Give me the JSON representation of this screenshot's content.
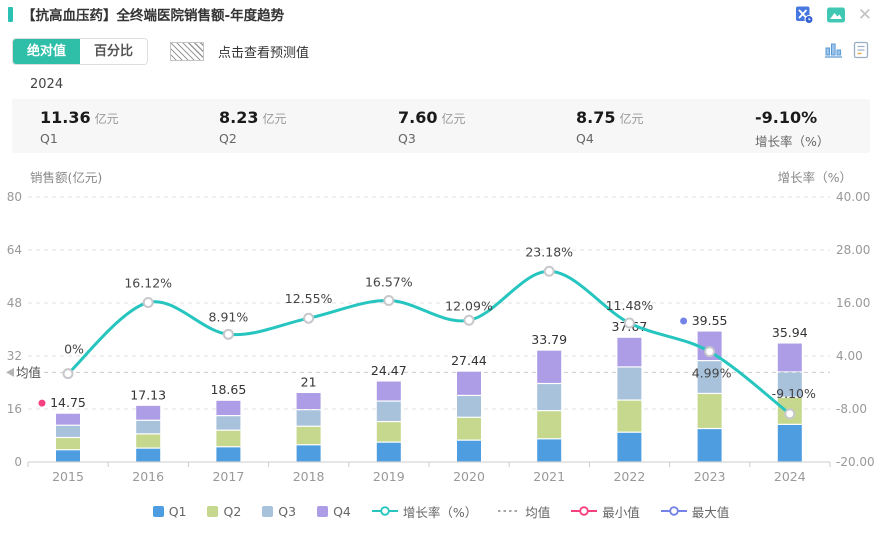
{
  "header": {
    "title": "【抗高血压药】全终端医院销售额-年度趋势"
  },
  "toolbar": {
    "segments": [
      {
        "label": "绝对值",
        "active": true
      },
      {
        "label": "百分比",
        "active": false
      }
    ],
    "forecast_label": "点击查看预测值"
  },
  "period_label": "2024",
  "stats": [
    {
      "value": "11.36",
      "unit": "亿元",
      "label": "Q1"
    },
    {
      "value": "8.23",
      "unit": "亿元",
      "label": "Q2"
    },
    {
      "value": "7.60",
      "unit": "亿元",
      "label": "Q3"
    },
    {
      "value": "8.75",
      "unit": "亿元",
      "label": "Q4"
    },
    {
      "value": "-9.10%",
      "unit": "",
      "label": "增长率（%）"
    }
  ],
  "chart_data": {
    "type": "bar",
    "subtype": "stacked-bar-with-line",
    "categories": [
      "2015",
      "2016",
      "2017",
      "2018",
      "2019",
      "2020",
      "2021",
      "2022",
      "2023",
      "2024"
    ],
    "series": [
      {
        "name": "Q1",
        "type": "bar",
        "color": "#4D9DE0",
        "values": [
          3.7,
          4.2,
          4.6,
          5.2,
          6.0,
          6.6,
          7.0,
          9.0,
          10.1,
          11.36
        ]
      },
      {
        "name": "Q2",
        "type": "bar",
        "color": "#C5D88D",
        "values": [
          3.7,
          4.3,
          5.0,
          5.6,
          6.2,
          6.9,
          8.5,
          9.7,
          10.6,
          8.23
        ]
      },
      {
        "name": "Q3",
        "type": "bar",
        "color": "#A9C2DC",
        "values": [
          3.7,
          4.1,
          4.4,
          5.0,
          6.2,
          6.6,
          8.2,
          10.0,
          9.9,
          7.6
        ]
      },
      {
        "name": "Q4",
        "type": "bar",
        "color": "#AC9DE6",
        "values": [
          3.65,
          4.53,
          4.65,
          5.2,
          6.07,
          7.34,
          10.09,
          8.97,
          8.95,
          8.75
        ]
      }
    ],
    "bar_totals": {
      "values": [
        14.75,
        17.13,
        18.65,
        21,
        24.47,
        27.44,
        33.79,
        37.67,
        39.55,
        35.94
      ],
      "labels": [
        "14.75",
        "17.13",
        "18.65",
        "21",
        "24.47",
        "27.44",
        "33.79",
        "37.67",
        "39.55",
        "35.94"
      ]
    },
    "growth_line": {
      "name": "增长率（%）",
      "color": "#27C5BF",
      "values": [
        0,
        16.12,
        8.91,
        12.55,
        16.57,
        12.09,
        23.18,
        11.48,
        4.99,
        -9.1
      ],
      "labels": [
        "0%",
        "16.12%",
        "8.91%",
        "12.55%",
        "16.57%",
        "12.09%",
        "23.18%",
        "11.48%",
        "4.99%",
        "-9.10%"
      ]
    },
    "mean_line": {
      "label": "均值",
      "value": 27.04,
      "color": "#c9c9c9"
    },
    "min_point": {
      "category": "2015",
      "value": 14.75,
      "label": "最小值",
      "color": "#F5417F"
    },
    "max_point": {
      "category": "2023",
      "value": 39.55,
      "label": "最大值",
      "color": "#7583E8"
    },
    "y_axis_left": {
      "title": "销售额(亿元)",
      "ticks": [
        "80",
        "64",
        "48",
        "32",
        "16",
        "0"
      ],
      "min": 0,
      "max": 80
    },
    "y_axis_right": {
      "title": "增长率（%）",
      "ticks": [
        "40.00",
        "28.00",
        "16.00",
        "4.00",
        "-8.00",
        "-20.00"
      ],
      "min": -20,
      "max": 40
    },
    "legend": [
      "Q1",
      "Q2",
      "Q3",
      "Q4",
      "增长率（%）",
      "均值",
      "最小值",
      "最大值"
    ],
    "grid": true,
    "legend_position": "bottom"
  }
}
